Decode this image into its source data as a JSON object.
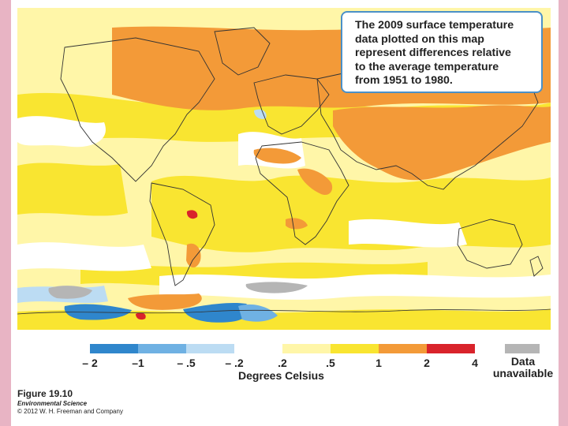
{
  "callout": {
    "lines": [
      "The 2009 surface temperature",
      "data plotted on this map",
      "represent differences relative",
      "to the average temperature",
      "from 1951 to 1980."
    ]
  },
  "legend": {
    "title": "Degrees Celsius",
    "colors": [
      "#2f86cc",
      "#6fb1e3",
      "#bcdcf3",
      "#ffffff",
      "#fff6a8",
      "#f9e531",
      "#f39a38",
      "#d9232b"
    ],
    "ticks": [
      "– 2",
      "–1",
      "– .5",
      "– .2",
      ".2",
      ".5",
      "1",
      "2",
      "4"
    ],
    "unavailable": {
      "color": "#b5b5b5",
      "line1": "Data",
      "line2": "unavailable"
    }
  },
  "map_colors": {
    "ocean_base": "#fff6a8",
    "warm_yellow": "#f9e531",
    "orange": "#f39a38",
    "red": "#d9232b",
    "light_blue": "#bcdcf3",
    "mid_blue": "#6fb1e3",
    "blue": "#2f86cc",
    "gray": "#b5b5b5",
    "white": "#ffffff"
  },
  "figure": {
    "number": "Figure 19.10",
    "book": "Environmental Science",
    "copyright": "© 2012 W. H. Freeman and Company"
  }
}
